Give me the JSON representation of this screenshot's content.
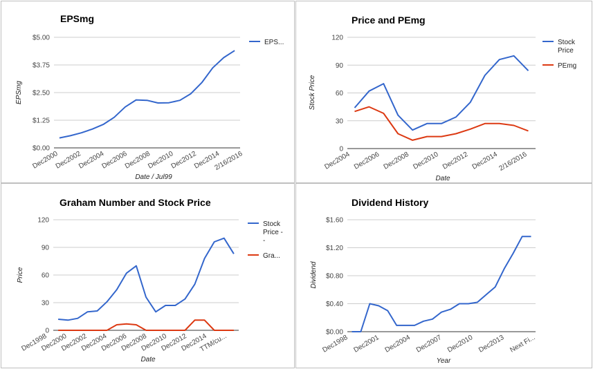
{
  "chart_data": [
    {
      "type": "line",
      "title": "EPSmg",
      "xlabel": "Date / Jul99",
      "ylabel": "EPSmg",
      "ylim": [
        0,
        5
      ],
      "yticks": [
        "$0.00",
        "$1.25",
        "$2.50",
        "$3.75",
        "$5.00"
      ],
      "xticks": [
        "Dec2000",
        "Dec2002",
        "Dec2004",
        "Dec2006",
        "Dec2008",
        "Dec2010",
        "Dec2012",
        "Dec2014",
        "2/16/2016"
      ],
      "legend_position": "right",
      "grid": true,
      "series": [
        {
          "name": "EPS...",
          "color": "#3366cc",
          "values": [
            0.45,
            0.55,
            0.68,
            0.85,
            1.06,
            1.38,
            1.85,
            2.17,
            2.15,
            2.03,
            2.04,
            2.15,
            2.45,
            2.95,
            3.62,
            4.08,
            4.4
          ]
        }
      ]
    },
    {
      "type": "line",
      "title": "Price and PEmg",
      "xlabel": "Date",
      "ylabel": "Stock Price",
      "ylim": [
        0,
        120
      ],
      "yticks": [
        "0",
        "30",
        "60",
        "90",
        "120"
      ],
      "xticks": [
        "Dec2004",
        "Dec2006",
        "Dec2008",
        "Dec2010",
        "Dec2012",
        "Dec2014",
        "2/16/2016"
      ],
      "legend_position": "right",
      "grid": true,
      "series": [
        {
          "name": "Stock Price",
          "legend_lines": [
            "Stock",
            "Price"
          ],
          "color": "#3366cc",
          "values": [
            44,
            62,
            70,
            36,
            20,
            27,
            27,
            34,
            50,
            79,
            96,
            100,
            84
          ]
        },
        {
          "name": "PEmg",
          "legend_lines": [
            "PEmg"
          ],
          "color": "#dc3912",
          "values": [
            40,
            45,
            38,
            16,
            9,
            13,
            13,
            16,
            21,
            27,
            27,
            25,
            19
          ]
        }
      ]
    },
    {
      "type": "line",
      "title": "Graham Number and Stock Price",
      "xlabel": "Date",
      "ylabel": "Price",
      "ylim": [
        0,
        120
      ],
      "yticks": [
        "0",
        "30",
        "60",
        "90",
        "120"
      ],
      "xticks": [
        "Dec1998",
        "Dec2000",
        "Dec2002",
        "Dec2004",
        "Dec2006",
        "Dec2008",
        "Dec2010",
        "Dec2012",
        "Dec2014",
        "TTM/cu..."
      ],
      "legend_position": "right",
      "grid": true,
      "series": [
        {
          "name": "Stock Price - -",
          "legend_lines": [
            "Stock",
            "Price -",
            "-"
          ],
          "color": "#3366cc",
          "values": [
            12,
            11,
            13,
            20,
            21,
            31,
            44,
            62,
            70,
            36,
            20,
            27,
            27,
            34,
            50,
            78,
            96,
            100,
            83
          ]
        },
        {
          "name": "Gra...",
          "legend_lines": [
            "Gra..."
          ],
          "color": "#dc3912",
          "values": [
            0,
            0,
            0,
            0,
            0,
            0,
            6,
            7,
            6,
            0,
            0,
            0,
            0,
            0,
            11,
            11,
            0,
            0,
            0
          ]
        }
      ]
    },
    {
      "type": "line",
      "title": "Dividend History",
      "xlabel": "Year",
      "ylabel": "Dividend",
      "ylim": [
        0,
        1.6
      ],
      "yticks": [
        "$0.00",
        "$0.40",
        "$0.80",
        "$1.20",
        "$1.60"
      ],
      "xticks": [
        "Dec1998",
        "Dec2001",
        "Dec2004",
        "Dec2007",
        "Dec2010",
        "Dec2013",
        "Next Fi..."
      ],
      "legend_position": "none",
      "grid": true,
      "series": [
        {
          "name": "Dividend",
          "color": "#3366cc",
          "values": [
            0,
            0,
            0.4,
            0.37,
            0.3,
            0.09,
            0.09,
            0.09,
            0.15,
            0.18,
            0.28,
            0.32,
            0.4,
            0.4,
            0.42,
            0.53,
            0.64,
            0.9,
            1.12,
            1.36,
            1.36
          ]
        }
      ]
    }
  ]
}
